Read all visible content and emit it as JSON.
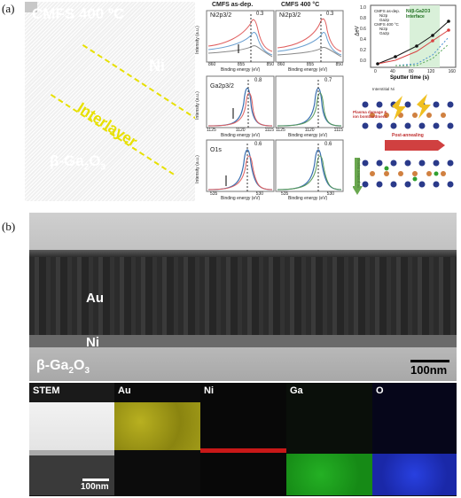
{
  "panel_a": {
    "label": "(a)",
    "tem": {
      "title": "CMFS 400 ºC",
      "ni": "Ni",
      "interlayer": "Interlayer",
      "ga2o3_prefix": "β-Ga",
      "ga2o3_sub1": "2",
      "ga2o3_mid": "O",
      "ga2o3_sub2": "3"
    },
    "xps": {
      "col1_title": "CMFS as-dep.",
      "col2_title": "CMFS 400 °C",
      "ylabel": "Intensity (a.u.)",
      "xlabel": "Binding energy (eV)",
      "rows": [
        {
          "element": "Ni2p3/2",
          "shift_left": "0.3",
          "shift_right": "0.3",
          "ticks": [
            "860",
            "855",
            "850"
          ]
        },
        {
          "element": "Ga2p3/2",
          "shift_left": "0.8",
          "shift_right": "0.7",
          "ticks": [
            "1125",
            "1120",
            "1115"
          ]
        },
        {
          "element": "O1s",
          "shift_left": "0.6",
          "shift_right": "0.6",
          "ticks": [
            "535",
            "530"
          ]
        }
      ]
    },
    "delta_chart": {
      "ylabel": "ΔeV",
      "xlabel": "Sputter time (s)",
      "annotation": "Ni/β-Ga2O3 Interface",
      "legend": [
        "CMFS as-dep.",
        "Ni2p",
        "Ga2p",
        "CMFS 400 °C",
        "Ni2p",
        "Ga2p"
      ],
      "yticks": [
        "1.0",
        "0.8",
        "0.6",
        "0.4",
        "0.2",
        "0.0"
      ],
      "xticks": [
        "0",
        "40",
        "80",
        "120",
        "160"
      ]
    },
    "schematic": {
      "interstitial": "Interstitial Ni",
      "plasma": "Plasma damage & ion bombardment",
      "post_annealing": "Post-annealing",
      "ni_doping": "Ni gradient doping"
    }
  },
  "panel_b": {
    "label": "(b)",
    "au": "Au",
    "ni": "Ni",
    "ga2o3_prefix": "β-Ga",
    "ga2o3_sub1": "2",
    "ga2o3_mid": "O",
    "ga2o3_sub2": "3",
    "scale": "100nm",
    "maps": [
      "STEM",
      "Au",
      "Ni",
      "Ga",
      "O"
    ],
    "map_scale": "100nm"
  },
  "colors": {
    "interlayer": "#e7e000",
    "ni_map": "#d41010",
    "ga_map": "#1eb01e",
    "o_map": "#1a32d0",
    "au_map": "#c8c21a"
  }
}
